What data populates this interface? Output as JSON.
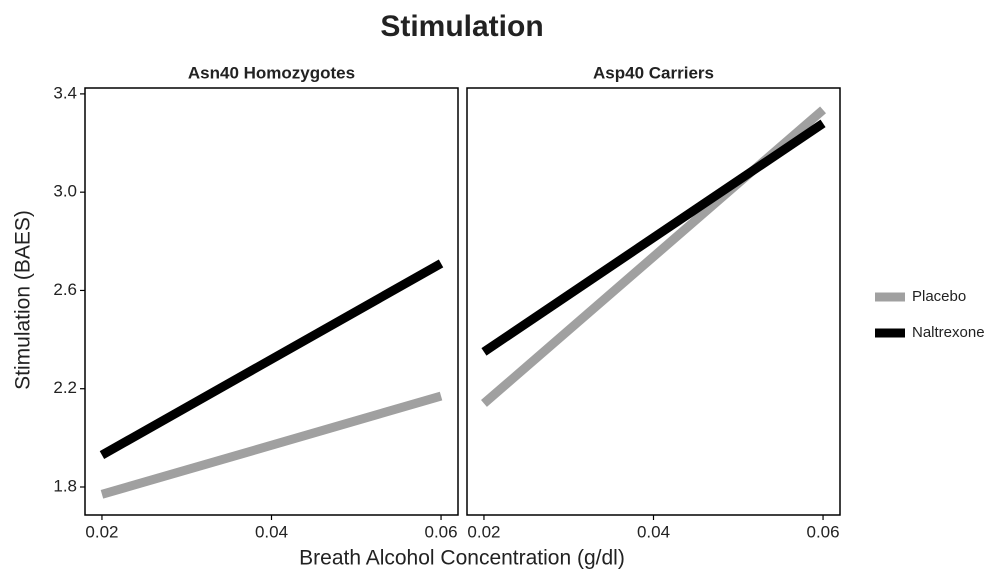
{
  "title": "Stimulation",
  "xlabel": "Breath Alcohol Concentration (g/dl)",
  "ylabel": "Stimulation (BAES)",
  "legend": "right",
  "chart_data": [
    {
      "type": "line",
      "title": "Asn40 Homozygotes",
      "x": [
        0.02,
        0.06
      ],
      "series": [
        {
          "name": "Placebo",
          "color": "#a0a0a0",
          "values": [
            1.77,
            2.17
          ]
        },
        {
          "name": "Naltrexone",
          "color": "#000000",
          "values": [
            1.93,
            2.71
          ]
        }
      ],
      "xlim": [
        0.018,
        0.062
      ],
      "ylim": [
        1.686,
        3.424
      ],
      "xticks": [
        0.02,
        0.04,
        0.06
      ],
      "yticks": [
        1.8,
        2.2,
        2.6,
        {
          "value": 3,
          "label": "3.0"
        },
        3.4
      ]
    },
    {
      "type": "line",
      "title": "Asp40 Carriers",
      "x": [
        0.02,
        0.06
      ],
      "series": [
        {
          "color": "#a0a0a0",
          "values": [
            2.14,
            3.335
          ]
        },
        {
          "color": "#000000",
          "values": [
            2.35,
            3.28
          ]
        }
      ],
      "xlim": [
        0.018,
        0.062
      ],
      "ylim": [
        1.686,
        3.424
      ],
      "xticks": [
        0.02,
        0.04,
        0.06
      ]
    }
  ]
}
